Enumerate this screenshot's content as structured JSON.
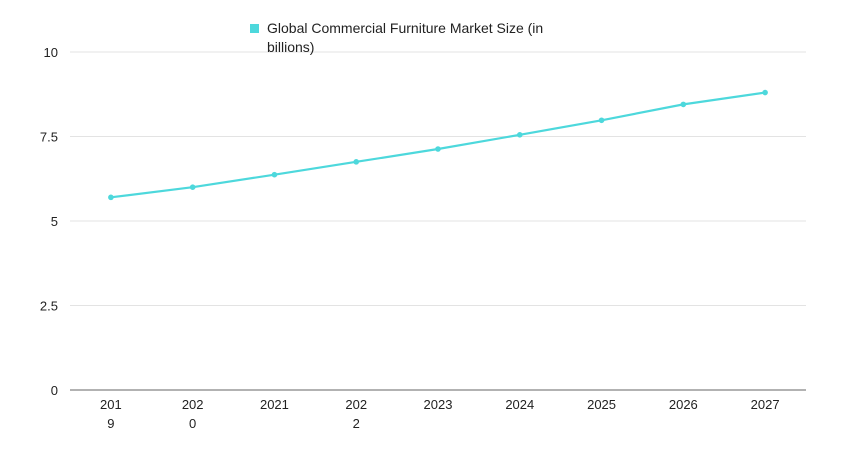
{
  "chart_data": {
    "type": "line",
    "title": "",
    "xlabel": "",
    "ylabel": "",
    "categories": [
      "2019",
      "2020",
      "2021",
      "2022",
      "2023",
      "2024",
      "2025",
      "2026",
      "2027"
    ],
    "x_tick_labels": [
      [
        "201",
        "9"
      ],
      [
        "202",
        "0"
      ],
      [
        "2021"
      ],
      [
        "202",
        "2"
      ],
      [
        "2023"
      ],
      [
        "2024"
      ],
      [
        "2025"
      ],
      [
        "2026"
      ],
      [
        "2027"
      ]
    ],
    "series": [
      {
        "name": "Global Commercial Furniture Market Size (in billions)",
        "values": [
          5.7,
          6.0,
          6.37,
          6.75,
          7.13,
          7.55,
          7.98,
          8.45,
          8.8
        ],
        "color": "#4dd8dc"
      }
    ],
    "y_ticks": [
      0,
      2.5,
      5,
      7.5,
      10
    ],
    "y_tick_labels": [
      "0",
      "2.5",
      "5",
      "7.5",
      "10"
    ],
    "ylim": [
      0,
      10
    ],
    "grid": true,
    "legend_position": "top-center"
  }
}
